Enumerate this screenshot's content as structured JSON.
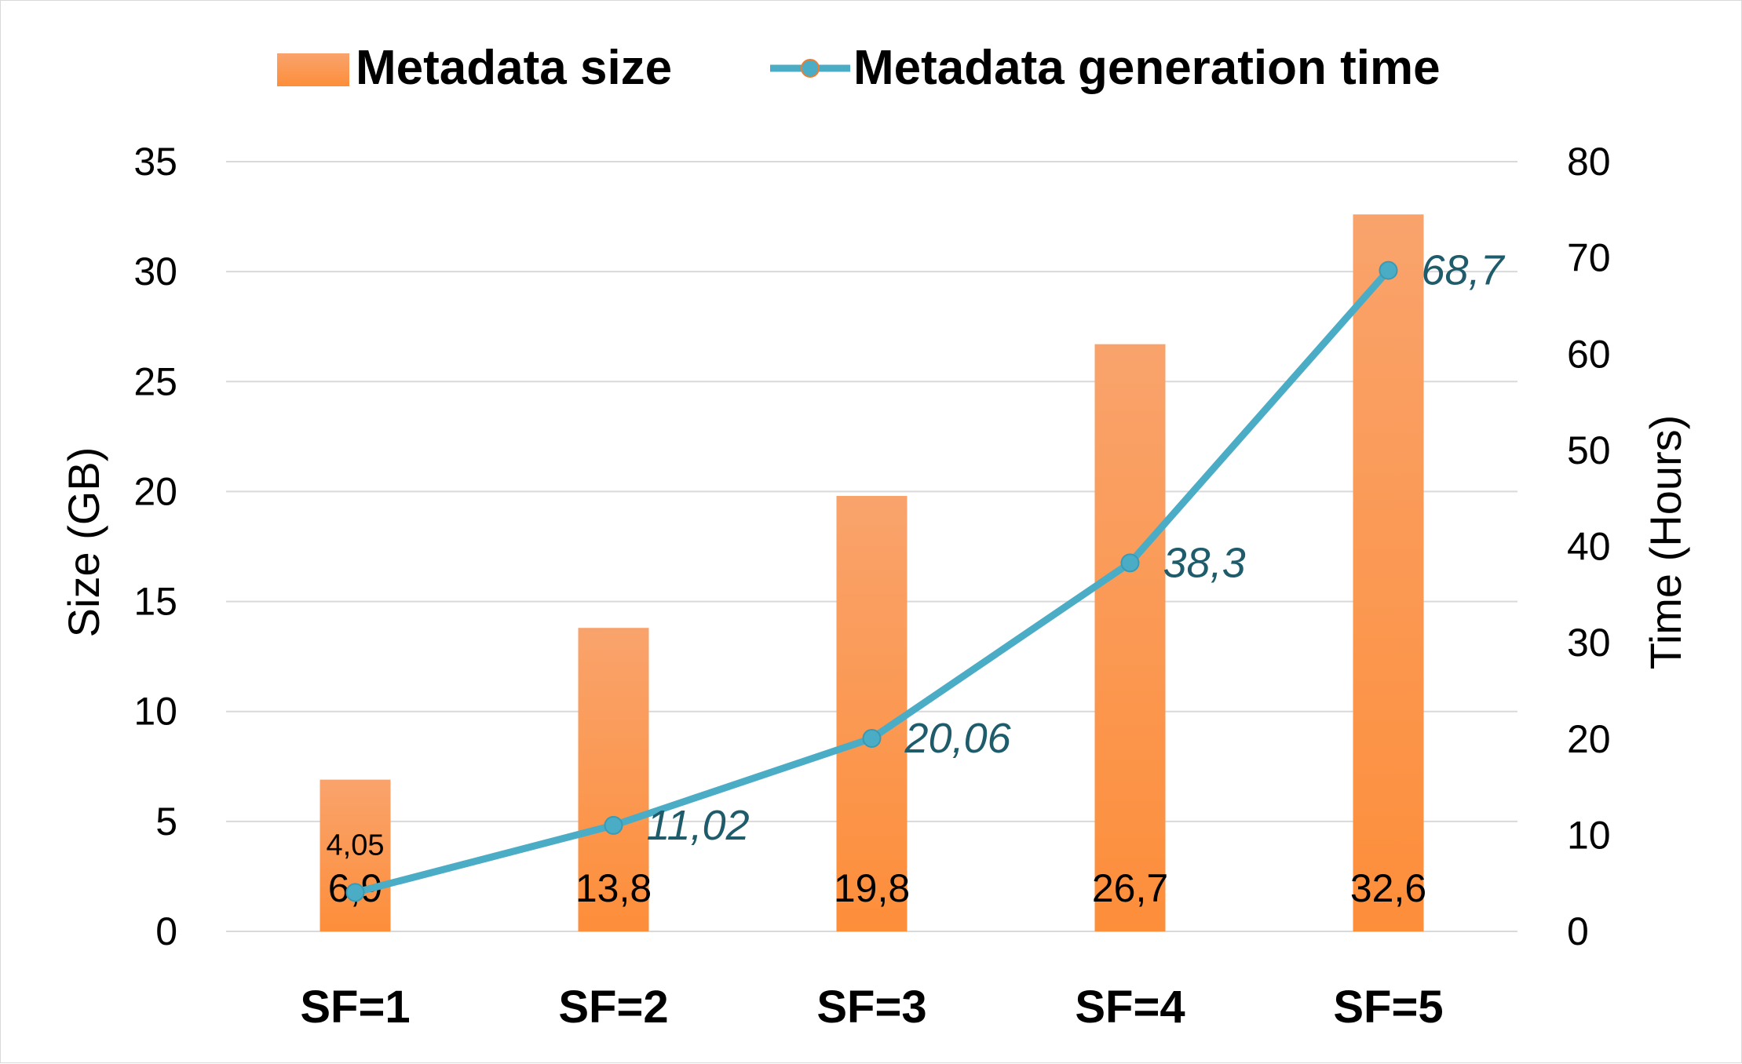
{
  "chart_data": {
    "type": "bar",
    "categories": [
      "SF=1",
      "SF=2",
      "SF=3",
      "SF=4",
      "SF=5"
    ],
    "series": [
      {
        "name": "Metadata size",
        "kind": "bar",
        "axis": "left",
        "values": [
          6.9,
          13.8,
          19.8,
          26.7,
          32.6
        ],
        "labels": [
          "6,9",
          "13,8",
          "19,8",
          "26,7",
          "32,6"
        ],
        "color_top": "#f9a36c",
        "color_bottom": "#fd8e3a"
      },
      {
        "name": "Metadata generation time",
        "kind": "line",
        "axis": "right",
        "values": [
          4.05,
          11.02,
          20.06,
          38.3,
          68.7
        ],
        "labels": [
          "4,05",
          "11,02",
          "20,06",
          "38,3",
          "68,7"
        ],
        "color": "#4bacc6"
      }
    ],
    "left_axis": {
      "title": "Size (GB)",
      "range": [
        0,
        35
      ],
      "ticks": [
        0,
        5,
        10,
        15,
        20,
        25,
        30,
        35
      ]
    },
    "right_axis": {
      "title": "Time (Hours)",
      "range": [
        0,
        80
      ],
      "ticks": [
        0,
        10,
        20,
        30,
        40,
        50,
        60,
        70,
        80
      ]
    },
    "legend_position": "top",
    "grid": true,
    "gridline_color": "#d9d9d9"
  }
}
